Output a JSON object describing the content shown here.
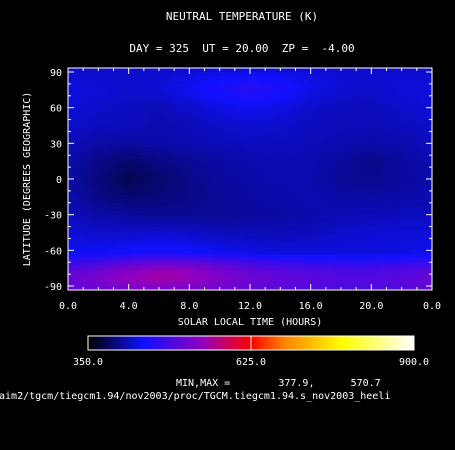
{
  "chart_data": {
    "type": "heatmap",
    "title": "NEUTRAL TEMPERATURE (K)",
    "subtitle": "DAY = 325  UT = 20.00  ZP =  -4.00",
    "xlabel": "SOLAR LOCAL TIME (HOURS)",
    "ylabel": "LATITUDE (DEGREES GEOGRAPHIC)",
    "x_ticks": [
      "0.0",
      "4.0",
      "8.0",
      "12.0",
      "16.0",
      "20.0",
      "0.0"
    ],
    "y_ticks": [
      "90",
      "60",
      "30",
      "0",
      "-30",
      "-60",
      "-90"
    ],
    "xlim": [
      0,
      24
    ],
    "ylim": [
      -90,
      90
    ],
    "colorbar": {
      "min": 350.0,
      "max": 900.0,
      "labels": [
        "350.0",
        "625.0",
        "900.0"
      ],
      "colors": [
        "#000000",
        "#1010ff",
        "#9000c0",
        "#ff0000",
        "#ff8000",
        "#ffff00",
        "#ffffff"
      ]
    },
    "minmax_text": "MIN,MAX =        377.9,      570.7",
    "source_path": "/aim2/tgcm/tiegcm1.94/nov2003/proc/TGCM.tiegcm1.94.s_nov2003_heeli",
    "grid": false,
    "legend": "colorbar-bottom",
    "lats": [
      -90,
      -82.5,
      -75,
      -67.5,
      -60,
      -45,
      -30,
      -15,
      0,
      15,
      30,
      45,
      60,
      67.5,
      75,
      82.5,
      90
    ],
    "lts": [
      0,
      2,
      4,
      6,
      8,
      10,
      12,
      14,
      16,
      18,
      20,
      22,
      24
    ],
    "values": [
      [
        505,
        510,
        520,
        525,
        520,
        515,
        505,
        500,
        495,
        490,
        490,
        495,
        505
      ],
      [
        510,
        525,
        545,
        555,
        545,
        530,
        515,
        505,
        500,
        495,
        495,
        500,
        510
      ],
      [
        500,
        515,
        535,
        550,
        545,
        525,
        510,
        500,
        495,
        490,
        490,
        495,
        500
      ],
      [
        470,
        480,
        495,
        505,
        500,
        490,
        480,
        470,
        465,
        460,
        460,
        465,
        470
      ],
      [
        440,
        440,
        445,
        450,
        445,
        440,
        435,
        430,
        430,
        430,
        430,
        432,
        440
      ],
      [
        430,
        425,
        425,
        428,
        425,
        420,
        418,
        418,
        420,
        425,
        428,
        430,
        430
      ],
      [
        420,
        412,
        408,
        405,
        405,
        405,
        408,
        410,
        413,
        416,
        418,
        420,
        420
      ],
      [
        415,
        400,
        392,
        395,
        400,
        405,
        410,
        412,
        415,
        412,
        410,
        412,
        415
      ],
      [
        412,
        395,
        380,
        390,
        400,
        408,
        412,
        415,
        414,
        405,
        402,
        408,
        412
      ],
      [
        415,
        400,
        390,
        398,
        405,
        410,
        414,
        416,
        415,
        408,
        400,
        408,
        415
      ],
      [
        420,
        412,
        410,
        412,
        415,
        418,
        420,
        420,
        418,
        415,
        412,
        415,
        420
      ],
      [
        425,
        420,
        420,
        415,
        418,
        425,
        428,
        425,
        420,
        418,
        418,
        420,
        425
      ],
      [
        430,
        425,
        420,
        418,
        425,
        435,
        440,
        435,
        425,
        420,
        418,
        425,
        430
      ],
      [
        432,
        428,
        425,
        425,
        435,
        448,
        455,
        448,
        432,
        425,
        422,
        428,
        432
      ],
      [
        430,
        428,
        425,
        428,
        438,
        450,
        458,
        450,
        435,
        428,
        425,
        428,
        430
      ],
      [
        428,
        426,
        424,
        426,
        432,
        440,
        445,
        440,
        432,
        428,
        426,
        428,
        428
      ],
      [
        425,
        425,
        425,
        425,
        425,
        425,
        425,
        425,
        425,
        425,
        425,
        425,
        425
      ]
    ]
  }
}
